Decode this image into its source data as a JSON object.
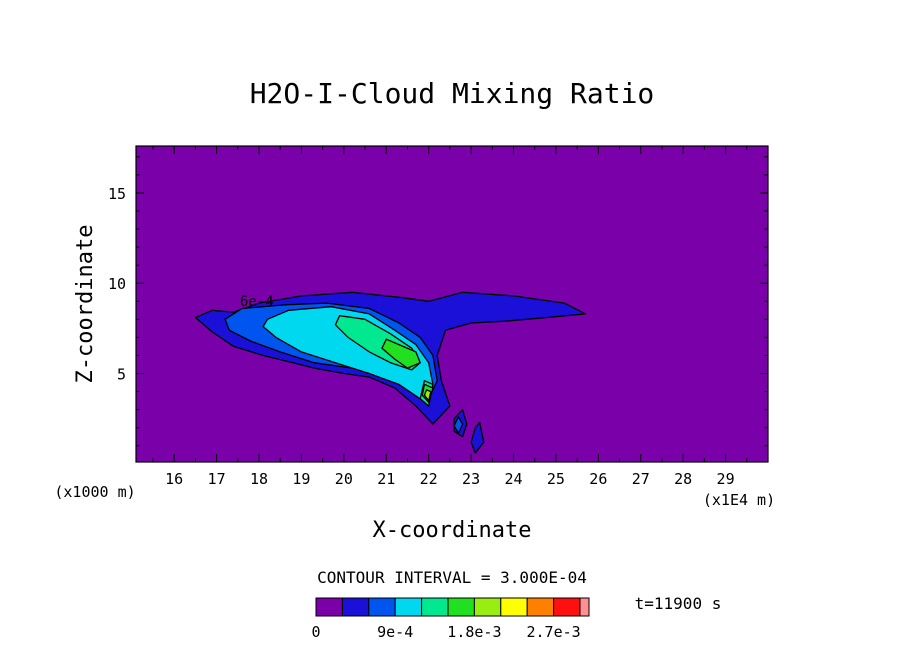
{
  "chart_data": {
    "type": "heatmap",
    "title": "H2O-I-Cloud Mixing Ratio",
    "xlabel": "X-coordinate",
    "ylabel": "Z-coordinate",
    "x_unit_label": "(x1000 m)",
    "x_scale_label": "(x1E4 m)",
    "xlim": [
      15.1,
      30
    ],
    "ylim": [
      0.1,
      17.6
    ],
    "x_ticks": [
      "16",
      "17",
      "18",
      "19",
      "20",
      "21",
      "22",
      "23",
      "24",
      "25",
      "26",
      "27",
      "28",
      "29"
    ],
    "y_ticks": [
      "5",
      "10",
      "15"
    ],
    "contour_interval_text": "CONTOUR INTERVAL = 3.000E-04",
    "contour_label": "6e-4",
    "time_text": "t=11900 s",
    "colorbar": {
      "colors": [
        "#7a00aa",
        "#1a10d8",
        "#0055ee",
        "#00d8f0",
        "#00e890",
        "#20e020",
        "#98ee10",
        "#ffff00",
        "#ff8000",
        "#ff1010",
        "#ff9090"
      ],
      "tick_labels": [
        "0",
        "9e-4",
        "1.8e-3",
        "2.7e-3"
      ]
    },
    "background_color": "#7a00aa",
    "regions": [
      {
        "level": 1,
        "points": [
          [
            17.4,
            8.4
          ],
          [
            18.0,
            8.9
          ],
          [
            19.0,
            9.3
          ],
          [
            20.2,
            9.5
          ],
          [
            21.4,
            9.2
          ],
          [
            22.0,
            9.0
          ],
          [
            22.8,
            9.5
          ],
          [
            24.0,
            9.3
          ],
          [
            25.2,
            8.9
          ],
          [
            25.7,
            8.3
          ],
          [
            24.8,
            8.1
          ],
          [
            23.8,
            7.9
          ],
          [
            23.0,
            7.8
          ],
          [
            22.4,
            7.4
          ],
          [
            22.2,
            6.0
          ],
          [
            22.3,
            4.6
          ],
          [
            22.5,
            3.2
          ],
          [
            22.1,
            2.2
          ],
          [
            21.7,
            3.2
          ],
          [
            21.2,
            4.2
          ],
          [
            20.6,
            4.8
          ],
          [
            20.0,
            5.0
          ],
          [
            19.3,
            5.3
          ],
          [
            18.8,
            5.6
          ],
          [
            18.1,
            6.0
          ],
          [
            17.4,
            6.5
          ],
          [
            16.9,
            7.3
          ],
          [
            16.5,
            8.1
          ],
          [
            16.9,
            8.5
          ]
        ]
      },
      {
        "level": 1,
        "points": [
          [
            22.6,
            2.5
          ],
          [
            22.8,
            3.0
          ],
          [
            22.9,
            2.2
          ],
          [
            22.8,
            1.5
          ],
          [
            22.6,
            1.8
          ]
        ]
      },
      {
        "level": 1,
        "points": [
          [
            23.1,
            2.0
          ],
          [
            23.2,
            2.3
          ],
          [
            23.3,
            1.2
          ],
          [
            23.1,
            0.6
          ],
          [
            23.0,
            1.2
          ]
        ]
      },
      {
        "level": 2,
        "points": [
          [
            17.2,
            8.0
          ],
          [
            17.6,
            8.6
          ],
          [
            18.6,
            8.8
          ],
          [
            19.6,
            8.9
          ],
          [
            20.6,
            8.6
          ],
          [
            21.3,
            7.8
          ],
          [
            21.8,
            7.0
          ],
          [
            22.1,
            6.0
          ],
          [
            22.2,
            4.6
          ],
          [
            22.0,
            3.6
          ],
          [
            21.6,
            4.2
          ],
          [
            21.0,
            4.9
          ],
          [
            20.2,
            5.3
          ],
          [
            19.3,
            5.6
          ],
          [
            18.5,
            6.2
          ],
          [
            17.8,
            6.8
          ],
          [
            17.3,
            7.4
          ]
        ]
      },
      {
        "level": 2,
        "points": [
          [
            22.7,
            2.6
          ],
          [
            22.8,
            2.2
          ],
          [
            22.7,
            1.7
          ],
          [
            22.6,
            2.1
          ]
        ]
      },
      {
        "level": 3,
        "points": [
          [
            18.2,
            8.0
          ],
          [
            18.7,
            8.5
          ],
          [
            19.7,
            8.7
          ],
          [
            20.6,
            8.3
          ],
          [
            21.2,
            7.4
          ],
          [
            21.7,
            6.6
          ],
          [
            22.0,
            5.6
          ],
          [
            22.1,
            4.4
          ],
          [
            21.8,
            3.6
          ],
          [
            21.3,
            4.4
          ],
          [
            20.6,
            5.0
          ],
          [
            19.8,
            5.6
          ],
          [
            19.0,
            6.2
          ],
          [
            18.4,
            7.0
          ],
          [
            18.1,
            7.6
          ]
        ]
      },
      {
        "level": 4,
        "points": [
          [
            19.9,
            8.2
          ],
          [
            20.5,
            8.0
          ],
          [
            21.1,
            7.2
          ],
          [
            21.6,
            6.4
          ],
          [
            21.8,
            5.6
          ],
          [
            21.6,
            5.2
          ],
          [
            21.1,
            5.6
          ],
          [
            20.6,
            6.2
          ],
          [
            20.1,
            7.0
          ],
          [
            19.8,
            7.7
          ]
        ]
      },
      {
        "level": 4,
        "points": [
          [
            21.9,
            4.6
          ],
          [
            22.1,
            4.4
          ],
          [
            22.0,
            3.2
          ],
          [
            21.8,
            3.6
          ]
        ]
      },
      {
        "level": 5,
        "points": [
          [
            21.0,
            6.9
          ],
          [
            21.3,
            6.6
          ],
          [
            21.7,
            6.2
          ],
          [
            21.8,
            5.6
          ],
          [
            21.5,
            5.3
          ],
          [
            21.2,
            5.8
          ],
          [
            20.9,
            6.4
          ]
        ]
      },
      {
        "level": 5,
        "points": [
          [
            21.9,
            4.4
          ],
          [
            22.1,
            4.2
          ],
          [
            22.0,
            3.4
          ],
          [
            21.85,
            3.8
          ]
        ]
      },
      {
        "level": 6,
        "points": [
          [
            21.95,
            4.1
          ],
          [
            22.05,
            4.0
          ],
          [
            22.0,
            3.5
          ],
          [
            21.9,
            3.8
          ]
        ]
      }
    ]
  }
}
